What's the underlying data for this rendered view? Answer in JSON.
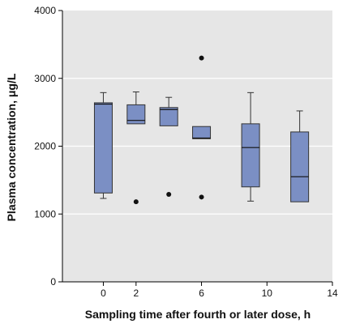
{
  "chart_data": {
    "type": "box",
    "title": "",
    "xlabel": "Sampling time after fourth or later dose, h",
    "ylabel": "Plasma concentration, μg/L",
    "xlim": [
      -2.5,
      14
    ],
    "ylim": [
      0,
      4000
    ],
    "x_ticks": [
      0,
      2,
      6,
      10,
      14
    ],
    "y_ticks": [
      0,
      1000,
      2000,
      3000,
      4000
    ],
    "grid": true,
    "plot_background": "#e6e6e6",
    "box_color": "#7b8fc4",
    "box_edge_color": "#333333",
    "gridline_color": "#ffffff",
    "boxes": [
      {
        "x": 0,
        "whisker_low": 1230,
        "q1": 1310,
        "median": 2620,
        "q3": 2640,
        "whisker_high": 2790,
        "outliers": []
      },
      {
        "x": 2,
        "whisker_low": 2330,
        "q1": 2330,
        "median": 2380,
        "q3": 2610,
        "whisker_high": 2800,
        "outliers": [
          1180
        ]
      },
      {
        "x": 4,
        "whisker_low": 2300,
        "q1": 2300,
        "median": 2540,
        "q3": 2570,
        "whisker_high": 2720,
        "outliers": [
          1290
        ]
      },
      {
        "x": 6,
        "whisker_low": 2110,
        "q1": 2110,
        "median": 2120,
        "q3": 2290,
        "whisker_high": 2290,
        "outliers": [
          3300,
          1250
        ]
      },
      {
        "x": 9,
        "whisker_low": 1190,
        "q1": 1400,
        "median": 1980,
        "q3": 2330,
        "whisker_high": 2790,
        "outliers": []
      },
      {
        "x": 12,
        "whisker_low": 1180,
        "q1": 1180,
        "median": 1550,
        "q3": 2210,
        "whisker_high": 2520,
        "outliers": []
      }
    ]
  }
}
